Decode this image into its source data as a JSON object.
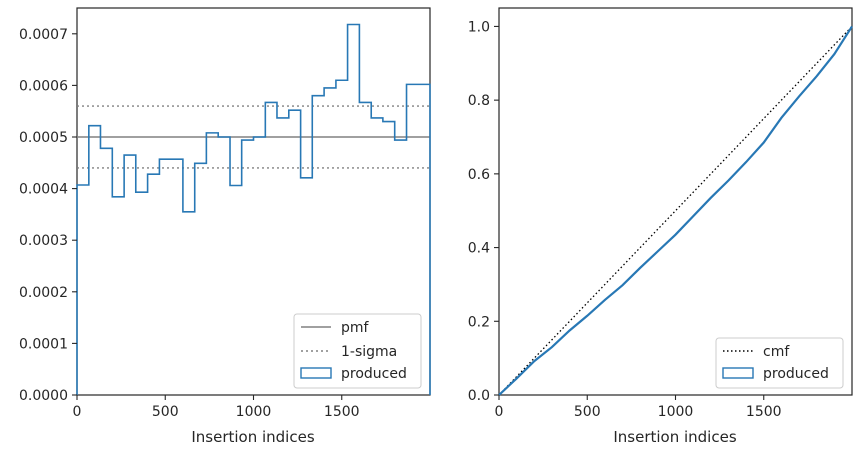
{
  "chart_data": [
    {
      "type": "step-histogram",
      "xlabel": "Insertion indices",
      "ylabel": "",
      "xlim": [
        0,
        2000
      ],
      "ylim": [
        0,
        0.00075
      ],
      "xticks": [
        0,
        500,
        1000,
        1500
      ],
      "xtick_labels": [
        "0",
        "500",
        "1000",
        "1500"
      ],
      "yticks": [
        0,
        0.0001,
        0.0002,
        0.0003,
        0.0004,
        0.0005,
        0.0006,
        0.0007
      ],
      "ytick_labels": [
        "0.0000",
        "0.0001",
        "0.0002",
        "0.0003",
        "0.0004",
        "0.0005",
        "0.0006",
        "0.0007"
      ],
      "bin_edges": [
        0,
        67,
        133,
        200,
        267,
        333,
        400,
        467,
        533,
        600,
        667,
        733,
        800,
        867,
        933,
        1000,
        1067,
        1133,
        1200,
        1267,
        1333,
        1400,
        1467,
        1533,
        1600,
        1667,
        1733,
        1800,
        1867,
        1933,
        2000
      ],
      "bin_values": [
        0.000407,
        0.000522,
        0.000478,
        0.000384,
        0.000465,
        0.000393,
        0.000428,
        0.000457,
        0.000457,
        0.000355,
        0.000449,
        0.000508,
        0.0005,
        0.000406,
        0.000494,
        0.0005,
        0.000567,
        0.000537,
        0.000552,
        0.000421,
        0.00058,
        0.000595,
        0.00061,
        0.000718,
        0.000567,
        0.000537,
        0.00053,
        0.000494,
        0.000602,
        0.000602
      ],
      "pmf": 0.0005,
      "sigma_band": [
        0.00044,
        0.00056
      ],
      "legend": {
        "position": "lower right",
        "entries": [
          "pmf",
          "1-sigma",
          "produced"
        ]
      },
      "colors": {
        "produced": "#2878b5",
        "pmf": "#808080",
        "sigma": "#808080"
      }
    },
    {
      "type": "line",
      "xlabel": "Insertion indices",
      "ylabel": "",
      "xlim": [
        0,
        2000
      ],
      "ylim": [
        0,
        1.05
      ],
      "xticks": [
        0,
        500,
        1000,
        1500
      ],
      "xtick_labels": [
        "0",
        "500",
        "1000",
        "1500"
      ],
      "yticks": [
        0,
        0.2,
        0.4,
        0.6,
        0.8,
        1.0
      ],
      "ytick_labels": [
        "0.0",
        "0.2",
        "0.4",
        "0.6",
        "0.8",
        "1.0"
      ],
      "series": [
        {
          "name": "cmf",
          "x": [
            0,
            2000
          ],
          "y": [
            0,
            1.0
          ]
        },
        {
          "name": "produced",
          "x": [
            0,
            100,
            200,
            300,
            400,
            500,
            600,
            700,
            800,
            900,
            1000,
            1100,
            1200,
            1300,
            1400,
            1500,
            1600,
            1700,
            1800,
            1900,
            2000
          ],
          "y": [
            0,
            0.045,
            0.092,
            0.13,
            0.175,
            0.215,
            0.258,
            0.298,
            0.345,
            0.39,
            0.435,
            0.485,
            0.535,
            0.582,
            0.632,
            0.685,
            0.752,
            0.81,
            0.865,
            0.925,
            1.0
          ]
        }
      ],
      "legend": {
        "position": "lower right",
        "entries": [
          "cmf",
          "produced"
        ]
      },
      "colors": {
        "produced": "#2878b5",
        "cmf": "#000000"
      }
    }
  ]
}
